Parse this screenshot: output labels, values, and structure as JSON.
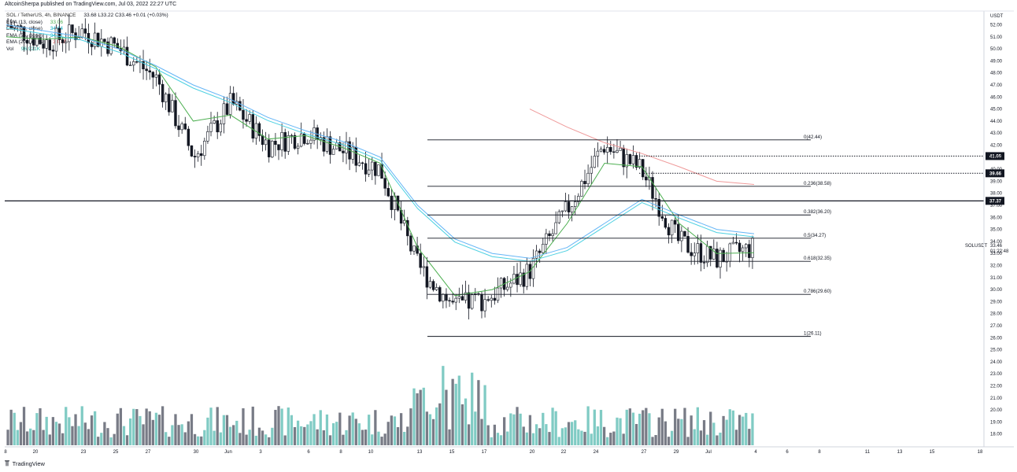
{
  "header": {
    "text": "AltcoinSherpa published on TradingView.com, Jul 03, 2022 22:27 UTC",
    "ohlc": "33.68 L33.22 C33.46 +0.01 (+0.03%)",
    "symbol_text": "SOL / TetherUS, 4h, BINANCE"
  },
  "legend": [
    {
      "label": "EMA (13, close)",
      "value": "33.06",
      "color": "#4caf50"
    },
    {
      "label": "EMA (50, close)",
      "value": "34.64",
      "color": "#00bcd4"
    },
    {
      "label": "EMA (55, close)",
      "value": "34.71",
      "color": "#00bcd4"
    },
    {
      "label": "EMA (200, close)",
      "value": "38.73",
      "color": "#e53935"
    },
    {
      "label": "Vol",
      "value": "96.921K",
      "color": "#26a69a"
    }
  ],
  "price_axis": {
    "unit": "USDT",
    "ticks": [
      "52.00",
      "51.00",
      "50.00",
      "49.00",
      "48.00",
      "47.00",
      "46.00",
      "45.00",
      "44.00",
      "43.00",
      "42.00",
      "41.00",
      "40.00",
      "39.00",
      "38.00",
      "37.00",
      "36.00",
      "35.00",
      "34.00",
      "33.00",
      "32.00",
      "31.00",
      "30.00",
      "29.00",
      "28.00",
      "27.00",
      "26.00",
      "25.00",
      "24.00",
      "23.00",
      "22.00",
      "21.00",
      "20.00",
      "19.00",
      "18.00"
    ],
    "tags": [
      {
        "value": "41.09",
        "price": 41.09,
        "bg": "#131722",
        "style": "dotted"
      },
      {
        "value": "39.66",
        "price": 39.66,
        "bg": "#131722",
        "style": "dotted"
      },
      {
        "value": "37.37",
        "price": 37.37,
        "bg": "#131722",
        "style": "solid"
      }
    ],
    "symbol_tag": {
      "symbol": "SOLUSDT",
      "value": "33.46",
      "countdown": "01:22:48"
    }
  },
  "time_axis": {
    "labels": [
      "8",
      "20",
      "23",
      "25",
      "27",
      "30",
      "Jun",
      "3",
      "6",
      "8",
      "10",
      "13",
      "15",
      "17",
      "20",
      "22",
      "24",
      "27",
      "29",
      "Jul",
      "4",
      "6",
      "8",
      "11",
      "13",
      "15",
      "18"
    ]
  },
  "fib_levels": [
    {
      "label": "0(42.44)",
      "price": 42.44
    },
    {
      "label": "0.236(38.58)",
      "price": 38.58
    },
    {
      "label": "0.382(36.20)",
      "price": 36.2
    },
    {
      "label": "0.5(34.27)",
      "price": 34.27
    },
    {
      "label": "0.618(32.35)",
      "price": 32.35
    },
    {
      "label": "0.786(29.60)",
      "price": 29.6
    },
    {
      "label": "1(26.11)",
      "price": 26.11
    }
  ],
  "footer": {
    "brand": "TradingView"
  },
  "chart_data": {
    "type": "line",
    "title": "SOL / TetherUS, 4h, BINANCE",
    "xlabel": "",
    "ylabel": "USDT",
    "ylim": [
      18,
      52.8
    ],
    "x": [
      "May 18",
      "May 20",
      "May 23",
      "May 25",
      "May 27",
      "May 30",
      "Jun 1",
      "Jun 3",
      "Jun 6",
      "Jun 8",
      "Jun 10",
      "Jun 13",
      "Jun 15",
      "Jun 17",
      "Jun 20",
      "Jun 22",
      "Jun 24",
      "Jun 27",
      "Jun 29",
      "Jul 1",
      "Jul 3"
    ],
    "series": [
      {
        "name": "Price (close)",
        "values": [
          52.0,
          50.5,
          51.5,
          50.0,
          47.5,
          41.0,
          45.5,
          42.0,
          43.0,
          41.5,
          40.0,
          32.0,
          28.5,
          29.5,
          31.5,
          36.5,
          42.0,
          40.0,
          34.0,
          32.5,
          33.46
        ]
      },
      {
        "name": "EMA (13, close)",
        "values": [
          51.0,
          50.8,
          51.0,
          50.2,
          48.5,
          44.0,
          44.5,
          42.5,
          42.8,
          41.8,
          40.5,
          33.5,
          29.5,
          30.0,
          31.5,
          35.5,
          40.5,
          40.2,
          35.5,
          33.0,
          33.06
        ]
      },
      {
        "name": "EMA (50, close)",
        "values": [
          52.0,
          51.5,
          51.0,
          50.0,
          48.6,
          47.0,
          45.8,
          44.3,
          43.2,
          42.3,
          41.0,
          37.0,
          34.2,
          33.0,
          32.6,
          33.5,
          35.5,
          37.5,
          36.2,
          35.0,
          34.64
        ]
      },
      {
        "name": "EMA (200, close)",
        "values": [
          null,
          null,
          null,
          null,
          null,
          null,
          null,
          null,
          null,
          null,
          null,
          null,
          null,
          null,
          45.0,
          43.5,
          42.2,
          41.3,
          40.2,
          39.0,
          38.73
        ]
      }
    ],
    "annotations": [
      "0(42.44)",
      "0.236(38.58)",
      "0.382(36.20)",
      "0.5(34.27)",
      "0.618(32.35)",
      "0.786(29.60)",
      "1(26.11)"
    ]
  }
}
